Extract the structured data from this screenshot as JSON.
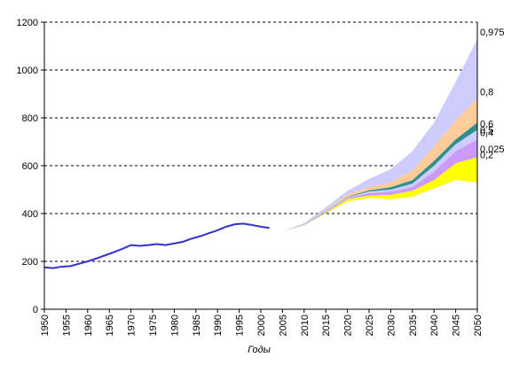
{
  "chart_data": {
    "type": "area",
    "title": "",
    "xlabel": "Годы",
    "ylabel": "",
    "xlim": [
      1950,
      2050
    ],
    "ylim": [
      0,
      1200
    ],
    "yticks": [
      0,
      200,
      400,
      600,
      800,
      1000,
      1200
    ],
    "xticks": [
      1950,
      1955,
      1960,
      1965,
      1970,
      1975,
      1980,
      1985,
      1990,
      1995,
      2000,
      2005,
      2010,
      2015,
      2020,
      2025,
      2030,
      2035,
      2040,
      2045,
      2050
    ],
    "grid": "horizontal dashed",
    "history": {
      "color": "#3333cc",
      "x": [
        1950,
        1952,
        1954,
        1956,
        1958,
        1960,
        1962,
        1964,
        1966,
        1968,
        1970,
        1972,
        1974,
        1976,
        1978,
        1980,
        1982,
        1984,
        1986,
        1988,
        1990,
        1992,
        1994,
        1996,
        1998,
        2000,
        2002
      ],
      "y": [
        175,
        172,
        178,
        180,
        190,
        200,
        212,
        225,
        238,
        252,
        268,
        265,
        268,
        272,
        268,
        275,
        282,
        295,
        305,
        318,
        330,
        345,
        355,
        358,
        352,
        345,
        340
      ]
    },
    "forecast": {
      "x": [
        2005,
        2010,
        2015,
        2020,
        2025,
        2030,
        2035,
        2040,
        2045,
        2050
      ],
      "quantiles": [
        {
          "label": "0,025",
          "y": [
            325,
            350,
            400,
            450,
            465,
            460,
            470,
            505,
            540,
            530
          ]
        },
        {
          "label": "0,2",
          "y": [
            325,
            351,
            403,
            460,
            475,
            478,
            495,
            540,
            610,
            635
          ]
        },
        {
          "label": "0,4",
          "y": [
            325,
            352,
            405,
            465,
            485,
            492,
            510,
            575,
            660,
            710
          ]
        },
        {
          "label": "0,5",
          "y": [
            325,
            353,
            407,
            468,
            492,
            500,
            525,
            600,
            690,
            750
          ]
        },
        {
          "label": "0,6",
          "y": [
            325,
            354,
            409,
            470,
            497,
            510,
            540,
            620,
            710,
            780
          ]
        },
        {
          "label": "0,8",
          "y": [
            325,
            356,
            412,
            480,
            510,
            530,
            580,
            680,
            790,
            880
          ]
        },
        {
          "label": "0,975",
          "y": [
            325,
            360,
            425,
            495,
            545,
            585,
            660,
            780,
            950,
            1130
          ]
        }
      ],
      "bands": [
        {
          "from": 0,
          "to": 1,
          "color": "#ffff00"
        },
        {
          "from": 1,
          "to": 2,
          "color": "#cc99ff"
        },
        {
          "from": 2,
          "to": 3,
          "color": "#ccccff"
        },
        {
          "from": 3,
          "to": 4,
          "color": "#2f8f8f"
        },
        {
          "from": 4,
          "to": 5,
          "color": "#ffcc99"
        },
        {
          "from": 5,
          "to": 6,
          "color": "#ccccff"
        }
      ]
    }
  }
}
